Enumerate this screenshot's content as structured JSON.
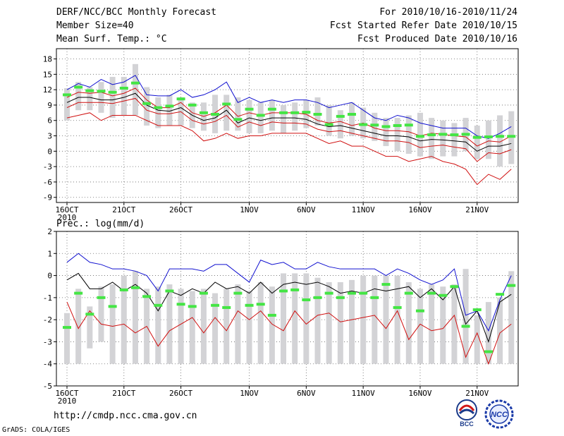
{
  "header": {
    "title": "DERF/NCC/BCC Monthly Forecast",
    "member": "Member Size=40",
    "variable": "Mean Surf. Temp.: °C",
    "period": "For 2010/10/16-2010/11/24",
    "refer": "Fcst Started Refer Date 2010/10/15",
    "produced": "Fcst Produced Date 2010/10/16"
  },
  "footer": {
    "url": "http://cmdp.ncc.cma.gov.cn",
    "grads": "GrADS: COLA/IGES",
    "logo1": "BCC",
    "logo2": "NCC"
  },
  "colors": {
    "box": "#d3d3d6",
    "median": "#44e544",
    "max": "#1010d0",
    "min": "#d01010",
    "mean": "#000000"
  },
  "chart_data": [
    {
      "type": "box-whisker",
      "title": "Mean Surf. Temp.: °C",
      "xlabel": "",
      "ylabel": "°C",
      "ylim": [
        -10,
        20
      ],
      "yticks": [
        -9,
        -6,
        -3,
        0,
        3,
        6,
        9,
        12,
        15,
        18
      ],
      "x_ticks": [
        {
          "day": 0,
          "label": "16OCT"
        },
        {
          "day": 5,
          "label": "21OCT"
        },
        {
          "day": 10,
          "label": "26OCT"
        },
        {
          "day": 16,
          "label": "1NOV"
        },
        {
          "day": 21,
          "label": "6NOV"
        },
        {
          "day": 26,
          "label": "11NOV"
        },
        {
          "day": 31,
          "label": "16NOV"
        },
        {
          "day": 36,
          "label": "21NOV"
        }
      ],
      "year_label": "2010",
      "days": 40,
      "series": [
        {
          "name": "box_top",
          "values": [
            12.3,
            13.5,
            12.5,
            13.5,
            14.5,
            14.5,
            17,
            12.5,
            10.5,
            11,
            10.5,
            9.5,
            9.5,
            11,
            11,
            10.5,
            10,
            9.5,
            10,
            9,
            9.5,
            10,
            10.5,
            9,
            8,
            9.5,
            8.5,
            7.5,
            6.5,
            6.5,
            7,
            7.5,
            6.5,
            6,
            5.5,
            6.5,
            5,
            6,
            7,
            7.8
          ]
        },
        {
          "name": "box_bottom",
          "values": [
            6,
            8,
            8,
            7.5,
            6.5,
            7,
            7,
            5,
            4.5,
            5,
            5,
            4.5,
            4,
            3.5,
            4,
            4,
            3.5,
            3.5,
            4,
            3.5,
            4,
            4.5,
            5,
            3,
            2.5,
            3,
            2.5,
            2,
            1,
            0,
            -0.5,
            -1,
            -1.5,
            -1,
            -1,
            0,
            -1.5,
            -1.5,
            -3,
            -2.5
          ]
        },
        {
          "name": "median",
          "values": [
            11,
            12.5,
            11.8,
            11.7,
            11.5,
            12.3,
            13.3,
            9.3,
            8.5,
            8.8,
            10.2,
            9,
            7.5,
            7.2,
            9.2,
            6.2,
            8.2,
            7,
            8.2,
            7.5,
            7.5,
            7.6,
            7.2,
            5.2,
            6.8,
            7.2,
            5.2,
            5.1,
            4.8,
            5,
            5.1,
            2.9,
            3.2,
            3.3,
            3.2,
            3.3,
            2.7,
            2.8,
            2.9,
            2.9
          ]
        },
        {
          "name": "max",
          "values": [
            12,
            13.2,
            12.5,
            14,
            13,
            13.5,
            14.8,
            11,
            10.8,
            10.8,
            12,
            10.5,
            11,
            12,
            13.5,
            9.5,
            10.5,
            9.5,
            10,
            9.5,
            10,
            10,
            9.5,
            8.5,
            9,
            9.5,
            8,
            6.5,
            6,
            7,
            6.5,
            5.5,
            5,
            4.5,
            4.5,
            4.5,
            3,
            2.5,
            3.5,
            4.8
          ]
        },
        {
          "name": "upper",
          "values": [
            10.5,
            11.5,
            11.3,
            11.5,
            10.8,
            11.3,
            12.3,
            10,
            8.5,
            8.5,
            9.5,
            7.5,
            6.8,
            7.5,
            9,
            6.8,
            7.5,
            7,
            7.5,
            7.5,
            7.5,
            7.2,
            6,
            5.5,
            5.8,
            5,
            5.5,
            4.5,
            4,
            4,
            3.8,
            3,
            3.5,
            3.3,
            3,
            2.8,
            1,
            2,
            1.8,
            3
          ]
        },
        {
          "name": "mean",
          "values": [
            9.5,
            10.5,
            10.5,
            10,
            10,
            10.5,
            11.3,
            9,
            8,
            7.8,
            8.5,
            7,
            6,
            6.5,
            8,
            5.5,
            6.5,
            6,
            6.5,
            6.5,
            6.5,
            6.2,
            5.3,
            4.8,
            5,
            4.5,
            4,
            3.5,
            3,
            3,
            2.8,
            2,
            2.3,
            2.2,
            2,
            1.8,
            0,
            1,
            1,
            1.5
          ]
        },
        {
          "name": "lower",
          "values": [
            8.5,
            9.5,
            9.5,
            9.5,
            9.3,
            9.8,
            10.3,
            8,
            7.3,
            7.3,
            7.7,
            6,
            5.3,
            5.8,
            7,
            4.7,
            5.7,
            5,
            5.7,
            5.5,
            5.5,
            5.3,
            4.3,
            3.8,
            4,
            3.5,
            3,
            2.5,
            2,
            2,
            1.7,
            0.7,
            1,
            1.2,
            0.8,
            0.5,
            -2,
            -0.3,
            -0.5,
            0.3
          ]
        },
        {
          "name": "min",
          "values": [
            6.5,
            7,
            7.5,
            6,
            7,
            7,
            7,
            6,
            5,
            5,
            5,
            4,
            2,
            2.5,
            3.5,
            2.5,
            3,
            3,
            3.5,
            3.5,
            3.5,
            3.5,
            2.5,
            1.5,
            2,
            1,
            1,
            0,
            -1,
            -1,
            -2,
            -1.5,
            -1,
            -2,
            -2.5,
            -3.5,
            -6.5,
            -4.5,
            -5.5,
            -3.5
          ]
        }
      ]
    },
    {
      "type": "box-whisker",
      "title": "Prec.: log(mm/d)",
      "xlabel": "",
      "ylabel": "log(mm/d)",
      "ylim": [
        -5,
        2
      ],
      "yticks": [
        -5,
        -4,
        -3,
        -2,
        -1,
        0,
        1,
        2
      ],
      "x_ticks": [
        {
          "day": 0,
          "label": "16OCT"
        },
        {
          "day": 5,
          "label": "21OCT"
        },
        {
          "day": 10,
          "label": "26OCT"
        },
        {
          "day": 16,
          "label": "1NOV"
        },
        {
          "day": 21,
          "label": "6NOV"
        },
        {
          "day": 26,
          "label": "11NOV"
        },
        {
          "day": 31,
          "label": "16NOV"
        },
        {
          "day": 36,
          "label": "21NOV"
        }
      ],
      "year_label": "2010",
      "days": 40,
      "series": [
        {
          "name": "box_top",
          "values": [
            -1.7,
            -0.6,
            -1.4,
            -0.5,
            -0.4,
            0,
            0.2,
            -0.6,
            -0.5,
            -0.4,
            -0.6,
            -0.7,
            -0.6,
            -0.8,
            -0.6,
            -0.4,
            -0.7,
            -0.3,
            -0.5,
            0.1,
            0.1,
            0.1,
            -0.1,
            -0.3,
            -0.3,
            -0.2,
            0,
            0,
            0,
            0,
            -0.3,
            -0.6,
            -0.4,
            -0.5,
            -0.4,
            0.3,
            -1.8,
            -1.2,
            -1,
            0.2
          ]
        },
        {
          "name": "box_bottom",
          "values": [
            -4,
            -4,
            -3.3,
            -3,
            -4,
            -4,
            -4,
            -4,
            -4,
            -4,
            -4,
            -4,
            -4,
            -4,
            -4,
            -4,
            -4,
            -4,
            -4,
            -4,
            -4,
            -4,
            -4,
            -4,
            -4,
            -4,
            -4,
            -4,
            -4,
            -4,
            -4,
            -4,
            -4,
            -4,
            -4,
            -4,
            -4,
            -4,
            -4,
            -4
          ]
        },
        {
          "name": "median",
          "values": [
            -2.35,
            -0.8,
            -1.75,
            -1,
            -1.4,
            -0.65,
            -0.55,
            -0.95,
            -1.35,
            -0.7,
            -1.3,
            -1.4,
            -0.8,
            -1.35,
            -1.45,
            -0.8,
            -1.35,
            -1.3,
            -1.8,
            -0.7,
            -0.65,
            -1.1,
            -1,
            -0.8,
            -1,
            -0.8,
            -0.8,
            -1,
            -0.4,
            -1.45,
            -0.8,
            -1.6,
            -0.8,
            -0.9,
            -0.5,
            -2.3,
            -1.55,
            -3.45,
            -0.85,
            -0.45
          ]
        },
        {
          "name": "max",
          "values": [
            0.6,
            1,
            0.6,
            0.5,
            0.3,
            0.3,
            0.2,
            0,
            -0.7,
            0.3,
            0.3,
            0.3,
            0.2,
            0.5,
            0.5,
            0.1,
            -0.3,
            0.7,
            0.5,
            0.6,
            0.3,
            0.3,
            0.6,
            0.4,
            0.3,
            0.3,
            0.3,
            0.3,
            0,
            0.3,
            0.1,
            -0.2,
            -0.4,
            -0.2,
            0.3,
            -1.8,
            -1.6,
            -2.5,
            -1.1,
            0
          ]
        },
        {
          "name": "mean",
          "values": [
            -0.2,
            0.1,
            -0.6,
            -0.6,
            -0.3,
            -0.7,
            -0.4,
            -0.8,
            -1.6,
            -0.7,
            -0.9,
            -0.6,
            -0.8,
            -0.3,
            -0.6,
            -0.5,
            -0.8,
            -0.3,
            -0.8,
            -0.4,
            -0.3,
            -0.4,
            -0.3,
            -0.5,
            -0.8,
            -0.7,
            -0.8,
            -0.6,
            -0.7,
            -0.6,
            -0.5,
            -1,
            -0.6,
            -1.1,
            -0.5,
            -2.2,
            -1.6,
            -3,
            -1.2,
            -0.85
          ]
        },
        {
          "name": "min",
          "values": [
            -1.2,
            -2.4,
            -1.6,
            -2.2,
            -2.3,
            -2.2,
            -2.6,
            -2.3,
            -3.2,
            -2.5,
            -2.2,
            -1.9,
            -2.6,
            -1.9,
            -2.5,
            -1.6,
            -2,
            -1.6,
            -2.2,
            -2.5,
            -1.6,
            -2.2,
            -1.8,
            -1.7,
            -2.1,
            -2,
            -1.9,
            -1.8,
            -2.4,
            -1.6,
            -2.9,
            -2.2,
            -2.5,
            -2.4,
            -1.8,
            -3.7,
            -2.6,
            -4,
            -2.6,
            -2.2
          ]
        }
      ]
    }
  ]
}
